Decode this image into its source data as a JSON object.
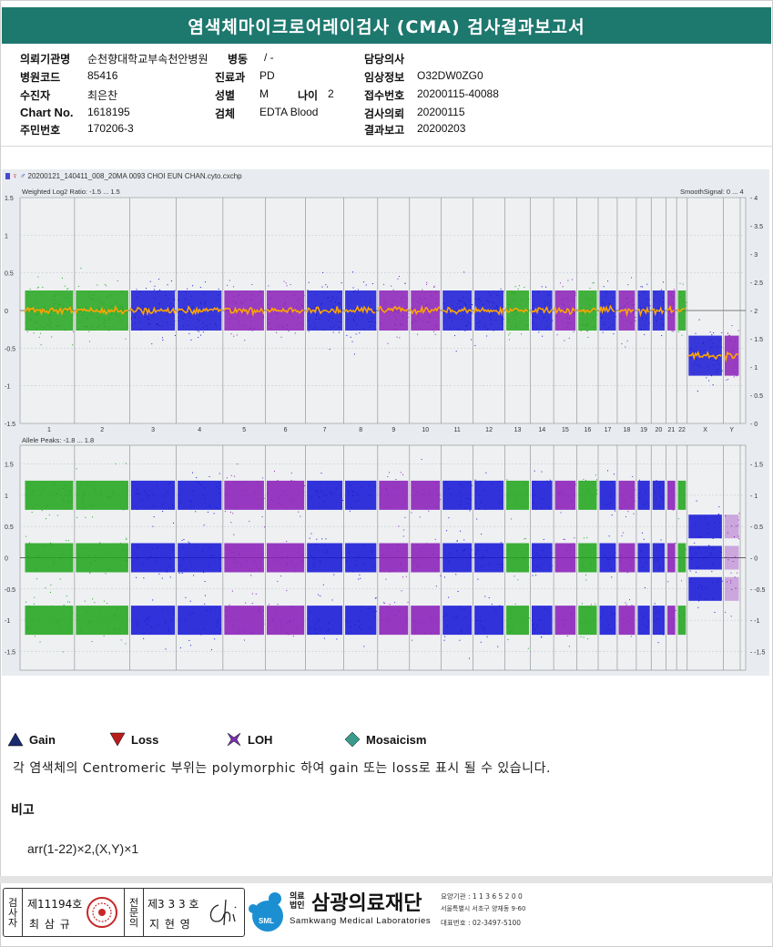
{
  "report": {
    "title": "염색체마이크로어레이검사 (CMA) 검사결과보고서",
    "fields": {
      "institution_label": "의뢰기관명",
      "institution": "순천향대학교부속천안병원",
      "ward_label": "병동",
      "ward": "/ -",
      "doctor_label": "담당의사",
      "doctor": "",
      "hospital_code_label": "병원코드",
      "hospital_code": "85416",
      "dept_label": "진료과",
      "dept": "PD",
      "clinical_info_label": "임상정보",
      "clinical_info": "O32DW0ZG0",
      "patient_label": "수진자",
      "patient": "최은찬",
      "sex_label": "성별",
      "sex": "M",
      "age_label": "나이",
      "age": "2",
      "receipt_label": "접수번호",
      "receipt": "20200115-40088",
      "chart_label": "Chart No.",
      "chart": "1618195",
      "specimen_label": "검체",
      "specimen": "EDTA Blood",
      "request_label": "검사의뢰",
      "request": "20200115",
      "rrn_label": "주민번호",
      "rrn": "170206-3",
      "report_label": "결과보고",
      "report": "20200203"
    }
  },
  "chart": {
    "filename": "20200121_140411_008_20MA 0093 CHOI EUN CHAN.cyto.cxchp",
    "top_label": "Weighted Log2 Ratio: -1.5 ... 1.5",
    "top_right_label": "SmoothSignal: 0 ... 4",
    "bottom_label": "Allele Peaks: -1.8 ... 1.8",
    "top_left_ticks": [
      "1.5",
      "1",
      "0.5",
      "0",
      "-0.5",
      "-1",
      "-1.5"
    ],
    "top_right_ticks": [
      "4",
      "3.5",
      "3",
      "2.5",
      "2",
      "1.5",
      "1",
      "0.5",
      "0"
    ],
    "bottom_ticks": [
      "1.5",
      "1",
      "0.5",
      "0",
      "-0.5",
      "-1",
      "-1.5"
    ],
    "chromosomes": [
      "1",
      "2",
      "3",
      "4",
      "5",
      "6",
      "7",
      "8",
      "9",
      "10",
      "11",
      "12",
      "13",
      "14",
      "15",
      "16",
      "17",
      "18",
      "19",
      "20",
      "21",
      "22",
      "X",
      "Y"
    ],
    "colors": {
      "green": "#22a51c",
      "blue": "#1717d6",
      "purple": "#8a1fb8",
      "orange": "#ffa500",
      "bg": "#eef0f2"
    }
  },
  "legend": {
    "gain": "Gain",
    "loss": "Loss",
    "loh": "LOH",
    "mosaicism": "Mosaicism"
  },
  "note": "각 염색체의 Centromeric 부위는 polymorphic 하여 gain 또는 loss로 표시 될 수 있습니다.",
  "remark_heading": "비고",
  "remark": "arr(1-22)×2,(X,Y)×1",
  "signature": {
    "col1": "검사자",
    "license1": "제11194호",
    "name1": "최 삼 규",
    "col2": "전문의",
    "license2": "제3 3 3 호",
    "name2": "지 현 영"
  },
  "org": {
    "prefix_top": "의료",
    "prefix_bottom": "법인",
    "name": "삼광의료재단",
    "name_en": "Samkwang Medical Laboratories",
    "logo_text": "SML",
    "code": "요양기관 : 1 1 3 6 5 2 0 0",
    "address": "서울특별시 서초구 양재동 9-60",
    "phone": "대표번호 : 02-3497-5100"
  }
}
